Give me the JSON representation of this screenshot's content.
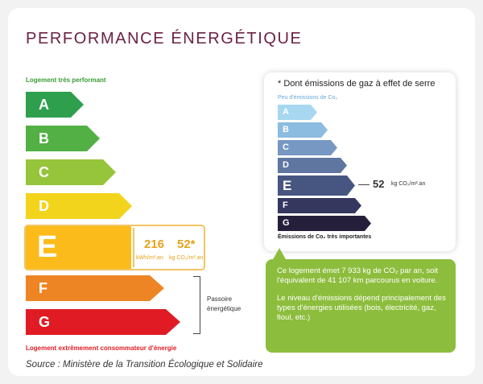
{
  "title": "PERFORMANCE ÉNERGÉTIQUE",
  "labels": {
    "top": "Logement très performant",
    "bottom": "Logement extrêmement consommateur d'énergie",
    "passoire_line1": "Passoire",
    "passoire_line2": "énergétique"
  },
  "energy_classes": [
    {
      "letter": "A",
      "color": "#2e9f4d"
    },
    {
      "letter": "B",
      "color": "#52b044"
    },
    {
      "letter": "C",
      "color": "#96c43b"
    },
    {
      "letter": "D",
      "color": "#f2d41c"
    },
    {
      "letter": "E",
      "color": "#fbbc1b"
    },
    {
      "letter": "F",
      "color": "#ee8524"
    },
    {
      "letter": "G",
      "color": "#e01b24"
    }
  ],
  "current": {
    "class": "E",
    "energy_value": "216",
    "energy_unit": "kWh/m².an",
    "ges_value": "52*",
    "ges_unit": "kg CO₂/m².an"
  },
  "ges_panel": {
    "title": "* Dont émissions de gaz à effet de serre",
    "top_label": "Peu d'émissions de Co₂",
    "bottom_label": "Émissions de Co₂ très importantes",
    "classes": [
      {
        "letter": "A",
        "color": "#a7d7f1"
      },
      {
        "letter": "B",
        "color": "#8cbcdf"
      },
      {
        "letter": "C",
        "color": "#7698c2"
      },
      {
        "letter": "D",
        "color": "#5f76a1"
      },
      {
        "letter": "E",
        "color": "#475581"
      },
      {
        "letter": "F",
        "color": "#35375e"
      },
      {
        "letter": "G",
        "color": "#261f3b"
      }
    ],
    "value": "52",
    "unit": "kg CO₂/m².an"
  },
  "info": {
    "paragraph1": "Ce logement émet 7 933 kg de CO₂ par an, soit l'équivalent de 41 107 km parcourus en voiture.",
    "paragraph2": "Le niveau d'émissions dépend principalement des types d'énergies utilisées (bois, électricité, gaz, fioul, etc.)",
    "color": "#8dbd3d"
  },
  "source": "Source : Ministère de la Transition Écologique et Solidaire"
}
